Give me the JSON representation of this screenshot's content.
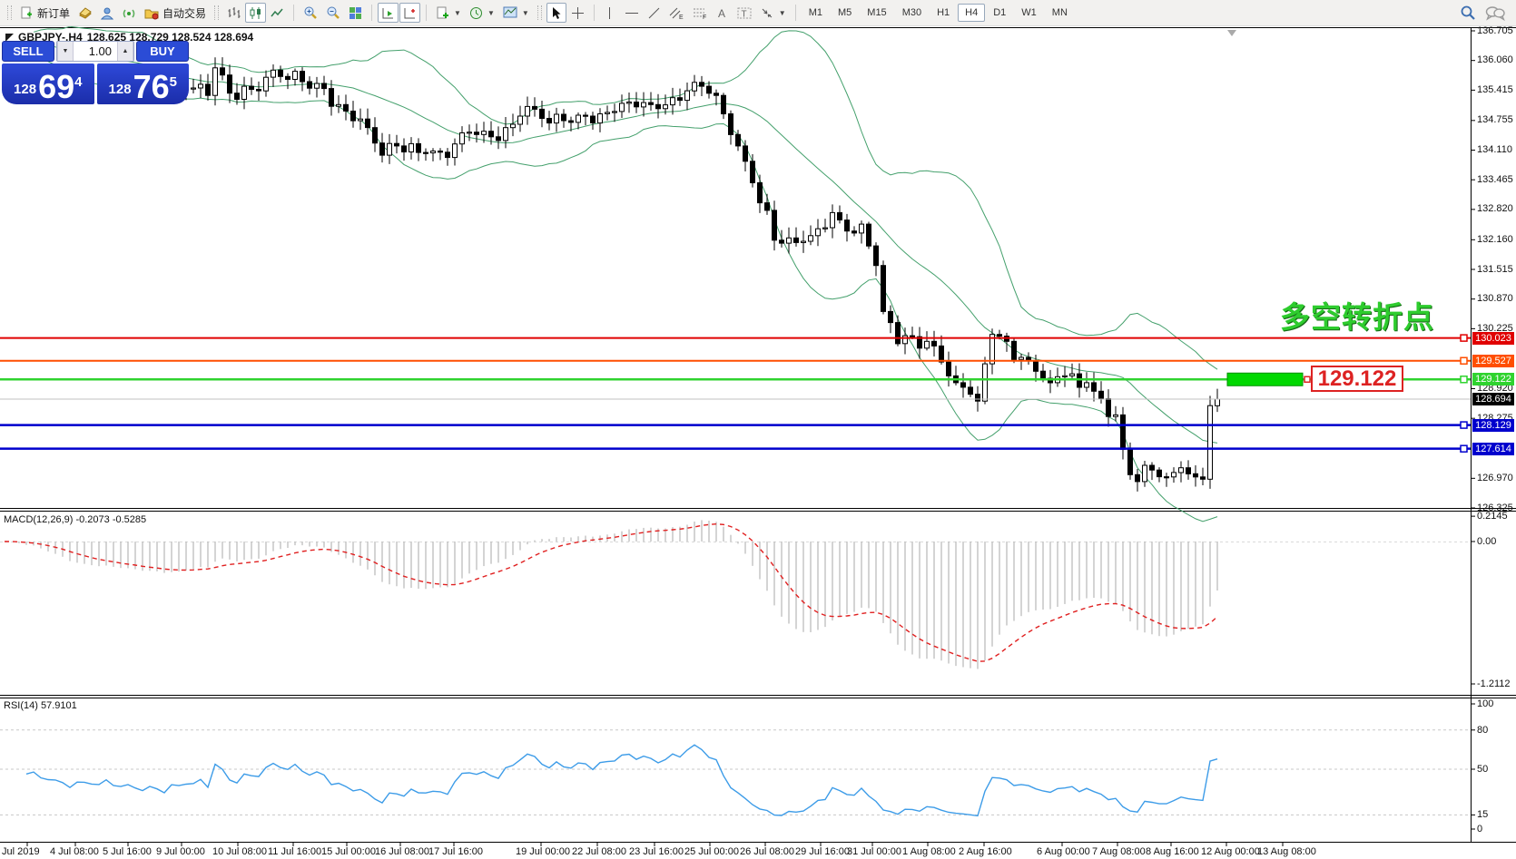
{
  "toolbar": {
    "new_order_label": "新订单",
    "auto_trading_label": "自动交易",
    "timeframes": [
      "M1",
      "M5",
      "M15",
      "M30",
      "H1",
      "H4",
      "D1",
      "W1",
      "MN"
    ],
    "active_timeframe": "H4"
  },
  "quote": {
    "symbol": "GBPJPY-,H4",
    "ohlc": "128.625 128.729 128.524 128.694"
  },
  "trade_panel": {
    "sell_label": "SELL",
    "buy_label": "BUY",
    "volume": "1.00",
    "sell_price": {
      "prefix": "128",
      "big": "69",
      "sup": "4"
    },
    "buy_price": {
      "prefix": "128",
      "big": "76",
      "sup": "5"
    }
  },
  "annotation": {
    "text": "多空转折点",
    "color": "#2ecc2e"
  },
  "level_box": {
    "text": "129.122"
  },
  "price_axis": {
    "ticks": [
      "136.705",
      "136.060",
      "135.415",
      "134.755",
      "134.110",
      "133.465",
      "132.820",
      "132.160",
      "131.515",
      "130.870",
      "130.225",
      "128.920",
      "128.275",
      "126.970",
      "126.325"
    ],
    "badges": [
      {
        "text": "130.023",
        "color": "#e00000"
      },
      {
        "text": "129.527",
        "color": "#ff4e00"
      },
      {
        "text": "129.122",
        "color": "#2fd32f"
      },
      {
        "text": "128.694",
        "color": "#000000"
      },
      {
        "text": "128.129",
        "color": "#0000cd"
      },
      {
        "text": "127.614",
        "color": "#0000cd"
      }
    ]
  },
  "macd_pane": {
    "label": "MACD(12,26,9) -0.2073 -0.5285",
    "scale": [
      "0.2145",
      "0.00",
      "-1.2112"
    ]
  },
  "rsi_pane": {
    "label": "RSI(14) 57.9101",
    "scale": [
      "100",
      "80",
      "50",
      "15",
      "0"
    ]
  },
  "time_axis": {
    "labels": [
      "Jul 2019",
      "4 Jul 08:00",
      "5 Jul 16:00",
      "9 Jul 00:00",
      "10 Jul 08:00",
      "11 Jul 16:00",
      "15 Jul 00:00",
      "16 Jul 08:00",
      "17 Jul 16:00",
      "19 Jul 00:00",
      "22 Jul 08:00",
      "23 Jul 16:00",
      "25 Jul 00:00",
      "26 Jul 08:00",
      "29 Jul 16:00",
      "31 Jul 00:00",
      "1 Aug 08:00",
      "2 Aug 16:00",
      "6 Aug 00:00",
      "7 Aug 08:00",
      "8 Aug 16:00",
      "12 Aug 00:00",
      "13 Aug 08:00"
    ]
  },
  "chart_data": {
    "type": "candlestick",
    "symbol": "GBPJPY",
    "timeframe": "H4",
    "price_range": [
      126.325,
      136.705
    ],
    "axis_tick_step": 0.645,
    "levels": [
      {
        "price": 130.023,
        "color": "#e00000",
        "width": 2,
        "style": "solid"
      },
      {
        "price": 129.527,
        "color": "#ff4e00",
        "width": 2,
        "style": "solid"
      },
      {
        "price": 129.122,
        "color": "#2fd32f",
        "width": 2.5,
        "style": "solid",
        "highlight_rect": true
      },
      {
        "price": 128.694,
        "color": "#c0c0c0",
        "width": 1,
        "style": "current-price"
      },
      {
        "price": 128.129,
        "color": "#0000cd",
        "width": 2.5,
        "style": "solid"
      },
      {
        "price": 127.614,
        "color": "#0000cd",
        "width": 2.5,
        "style": "solid"
      }
    ],
    "close_waypoints": [
      [
        0,
        136.6
      ],
      [
        6,
        136.1
      ],
      [
        12,
        135.8
      ],
      [
        18,
        135.55
      ],
      [
        24,
        135.42
      ],
      [
        25,
        135.45
      ],
      [
        28,
        135.3
      ],
      [
        29,
        135.9
      ],
      [
        31,
        135.35
      ],
      [
        33,
        135.5
      ],
      [
        35,
        135.4
      ],
      [
        37,
        135.85
      ],
      [
        39,
        135.65
      ],
      [
        41,
        135.6
      ],
      [
        44,
        135.45
      ],
      [
        46,
        135.1
      ],
      [
        48,
        134.75
      ],
      [
        50,
        134.6
      ],
      [
        52,
        134.0
      ],
      [
        54,
        134.2
      ],
      [
        56,
        134.25
      ],
      [
        58,
        134.05
      ],
      [
        61,
        133.95
      ],
      [
        64,
        134.5
      ],
      [
        67,
        134.4
      ],
      [
        69,
        134.6
      ],
      [
        71,
        134.85
      ],
      [
        73,
        135.0
      ],
      [
        75,
        134.7
      ],
      [
        77,
        134.75
      ],
      [
        80,
        134.85
      ],
      [
        82,
        134.9
      ],
      [
        84,
        134.95
      ],
      [
        87,
        135.05
      ],
      [
        89,
        135.1
      ],
      [
        92,
        135.25
      ],
      [
        94,
        135.4
      ],
      [
        96,
        135.5
      ],
      [
        98,
        135.3
      ],
      [
        99,
        134.9
      ],
      [
        101,
        134.2
      ],
      [
        103,
        133.4
      ],
      [
        105,
        132.8
      ],
      [
        106,
        132.15
      ],
      [
        108,
        132.2
      ],
      [
        109,
        132.1
      ],
      [
        111,
        132.25
      ],
      [
        112,
        132.4
      ],
      [
        114,
        132.75
      ],
      [
        116,
        132.35
      ],
      [
        118,
        132.5
      ],
      [
        120,
        131.6
      ],
      [
        121,
        130.6
      ],
      [
        123,
        129.9
      ],
      [
        125,
        130.05
      ],
      [
        127,
        129.95
      ],
      [
        128,
        129.85
      ],
      [
        129,
        129.5
      ],
      [
        131,
        129.05
      ],
      [
        133,
        128.8
      ],
      [
        134,
        128.65
      ],
      [
        136,
        130.1
      ],
      [
        138,
        129.95
      ],
      [
        140,
        129.6
      ],
      [
        142,
        129.3
      ],
      [
        144,
        129.05
      ],
      [
        146,
        129.2
      ],
      [
        148,
        128.95
      ],
      [
        149,
        129.05
      ],
      [
        151,
        128.7
      ],
      [
        153,
        128.35
      ],
      [
        154,
        127.6
      ],
      [
        155,
        127.05
      ],
      [
        156,
        126.9
      ],
      [
        158,
        127.15
      ],
      [
        160,
        127.0
      ],
      [
        162,
        127.2
      ],
      [
        164,
        127.0
      ],
      [
        165,
        126.95
      ],
      [
        166,
        128.55
      ],
      [
        167,
        128.694
      ]
    ],
    "first_visible_bar": 25,
    "indicators": {
      "bollinger": {
        "period": 20,
        "deviation": 2,
        "color": "#44a06c"
      },
      "macd": {
        "fast": 12,
        "slow": 26,
        "signal_period": 9,
        "value": -0.2073,
        "signal": -0.5285,
        "histogram_color": "#b8b8b8",
        "signal_color": "#e02020",
        "scale_max": 0.2145,
        "scale_min": -1.2112
      },
      "rsi": {
        "period": 14,
        "value": 57.9101,
        "color": "#3d9ce8",
        "levels": [
          80,
          50,
          15
        ],
        "scale": [
          0,
          100
        ]
      }
    }
  }
}
